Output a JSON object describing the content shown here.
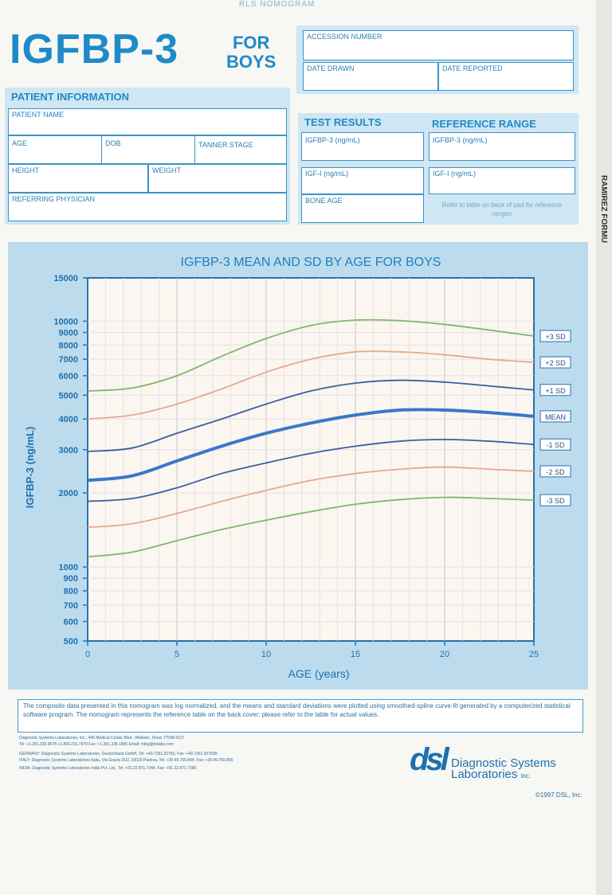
{
  "header": {
    "top_cut_text": "RLS NOMOGRAM",
    "title": "IGFBP-3",
    "for_line1": "FOR",
    "for_line2": "BOYS",
    "edge_text": "RAMIREZ FORMU"
  },
  "admin": {
    "accession": "ACCESSION NUMBER",
    "date_drawn": "DATE DRAWN",
    "date_reported": "DATE REPORTED"
  },
  "patient": {
    "section_title": "PATIENT INFORMATION",
    "name": "PATIENT NAME",
    "age": "AGE",
    "dob": "DOB",
    "tanner": "TANNER STAGE",
    "height": "HEIGHT",
    "weight": "WEIGHT",
    "physician": "REFERRING PHYSICIAN"
  },
  "results": {
    "test_title": "TEST RESULTS",
    "ref_title": "REFERENCE RANGE",
    "igfbp3": "IGFBP-3 (ng/mL)",
    "ref_igfbp3": "IGFBP-3 (ng/mL)",
    "igf1": "IGF-I (ng/mL)",
    "ref_igf1": "IGF-I (ng/mL)",
    "bone_age": "BONE AGE",
    "ref_note": "Refer to table on back of pad for reference ranges"
  },
  "chart_data": {
    "type": "line",
    "title": "IGFBP-3 MEAN AND SD BY AGE FOR BOYS",
    "xlabel": "AGE (years)",
    "ylabel": "IGFBP-3 (ng/mL)",
    "xlim": [
      0,
      25
    ],
    "ylim": [
      500,
      15000
    ],
    "yscale": "log",
    "x_ticks": [
      0,
      5,
      10,
      15,
      20,
      25
    ],
    "y_ticks": [
      500,
      600,
      700,
      800,
      900,
      1000,
      2000,
      3000,
      4000,
      5000,
      6000,
      7000,
      8000,
      9000,
      10000,
      15000
    ],
    "grid": true,
    "x": [
      0,
      2.5,
      5,
      7.5,
      10,
      12.5,
      15,
      17.5,
      20,
      22.5,
      25
    ],
    "series": [
      {
        "name": "+3 SD",
        "color": "#7fb86a",
        "values": [
          5200,
          5350,
          6000,
          7200,
          8500,
          9600,
          10100,
          10050,
          9700,
          9200,
          8700
        ]
      },
      {
        "name": "+2 SD",
        "color": "#e8a890",
        "values": [
          4000,
          4150,
          4600,
          5300,
          6200,
          7000,
          7500,
          7500,
          7300,
          7000,
          6800
        ]
      },
      {
        "name": "+1 SD",
        "color": "#3a5fa0",
        "values": [
          2950,
          3050,
          3500,
          4000,
          4600,
          5200,
          5600,
          5750,
          5650,
          5450,
          5250
        ]
      },
      {
        "name": "MEAN",
        "color": "#3a78c8",
        "values": [
          2250,
          2350,
          2700,
          3100,
          3500,
          3850,
          4150,
          4350,
          4350,
          4250,
          4100
        ]
      },
      {
        "name": "-1 SD",
        "color": "#3a5fa0",
        "values": [
          1850,
          1900,
          2100,
          2400,
          2650,
          2900,
          3100,
          3250,
          3300,
          3250,
          3150
        ]
      },
      {
        "name": "-2 SD",
        "color": "#e8a890",
        "values": [
          1450,
          1500,
          1650,
          1850,
          2050,
          2250,
          2400,
          2500,
          2550,
          2500,
          2450
        ]
      },
      {
        "name": "-3 SD",
        "color": "#7fb86a",
        "values": [
          1100,
          1150,
          1280,
          1420,
          1550,
          1680,
          1800,
          1880,
          1920,
          1900,
          1870
        ]
      }
    ]
  },
  "footnote": "The composite data presented in this nomogram was log normalized, and the means and standard deviations were plotted using smoothed-spline curve-fit generated by a computerized statistical software program. The nomogram represents the reference table on the back cover; please refer to the table for actual values.",
  "footer": {
    "address1": "Diagnostic Systems Laboratories, Inc., 445 Medical Center Blvd., Webster, Texas 77598-4217",
    "address2": "Tel: +1.281.332.9678  +1.800.231.7970  Fax: +1.281.338.1895  Email: mktg@dslabs.com",
    "address3": "GERMANY: Diagnostic Systems Laboratories, Deutschland GmbH, Tel: +49.7261.92760, Fax: +49.7261.927699",
    "address4": "ITALY: Diagnostic Systems Laboratories Italia, Via Grazia 25/2, 20020 Padova, Tel: +39.49.760.844, Fax: +39.49.760.855",
    "address5": "INDIA: Diagnostic Systems Laboratories India Pvt. Ltd., Tel: +91.22.871.7344, Fax: +91.22.871.7380",
    "logo_mark": "dsl",
    "logo_line1": "Diagnostic Systems",
    "logo_line2": "Laboratories",
    "logo_inc": "inc.",
    "copyright": "©1997 DSL, Inc."
  }
}
